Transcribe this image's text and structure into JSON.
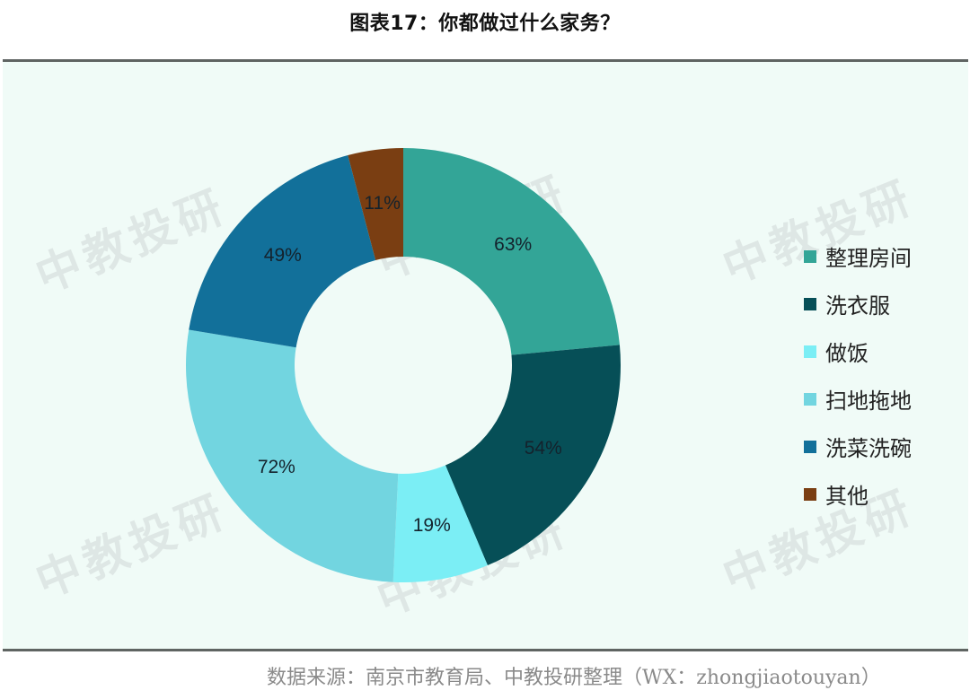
{
  "title": "图表17：你都做过什么家务？",
  "source": "数据来源：南京市教育局、中教投研整理（WX：zhongjiaotouyan）",
  "watermark": "中教投研",
  "chart_data": {
    "type": "pie",
    "variant": "donut",
    "title": "图表17：你都做过什么家务？",
    "categories": [
      "整理房间",
      "洗衣服",
      "做饭",
      "扫地拖地",
      "洗菜洗碗",
      "其他"
    ],
    "values": [
      63,
      54,
      19,
      72,
      49,
      11
    ],
    "labels": [
      "63%",
      "54%",
      "19%",
      "72%",
      "49%",
      "11%"
    ],
    "unit": "%",
    "colors": [
      "#33a597",
      "#064f57",
      "#7beef5",
      "#72d5e0",
      "#12709a",
      "#7a3e12"
    ],
    "start_angle_deg": 0,
    "direction": "clockwise",
    "legend_position": "right",
    "source": "数据来源：南京市教育局、中教投研整理（WX：zhongjiaotouyan）"
  },
  "legend": [
    {
      "label": "整理房间",
      "color": "#33a597"
    },
    {
      "label": "洗衣服",
      "color": "#064f57"
    },
    {
      "label": "做饭",
      "color": "#7beef5"
    },
    {
      "label": "扫地拖地",
      "color": "#72d5e0"
    },
    {
      "label": "洗菜洗碗",
      "color": "#12709a"
    },
    {
      "label": "其他",
      "color": "#7a3e12"
    }
  ]
}
